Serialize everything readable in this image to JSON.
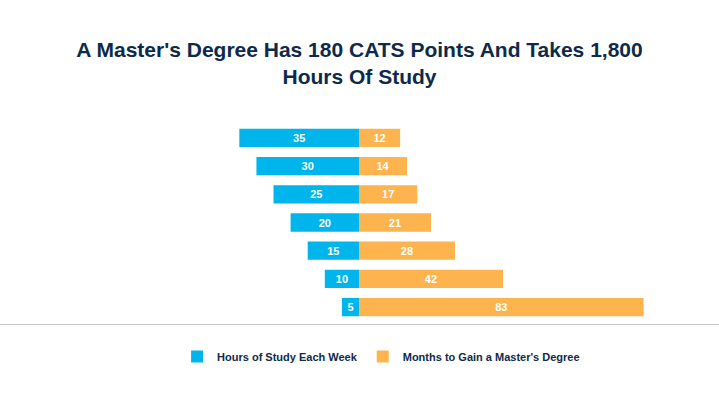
{
  "chart_data": {
    "type": "bar",
    "title": "A Master's Degree Has 180 CATS Points And Takes 1,800\nHours Of Study",
    "orientation": "horizontal",
    "series": [
      {
        "name": "Hours of Study Each Week",
        "color": "#00B5EC",
        "values": [
          35,
          30,
          25,
          20,
          15,
          10,
          5
        ]
      },
      {
        "name": "Months to Gain a Master's Degree",
        "color": "#FDB44E",
        "values": [
          12,
          14,
          17,
          21,
          28,
          42,
          83
        ]
      }
    ],
    "xlim": [
      0,
      105
    ],
    "data_labels": true,
    "tick_labels": false,
    "legend": "bottom",
    "grid": false
  }
}
